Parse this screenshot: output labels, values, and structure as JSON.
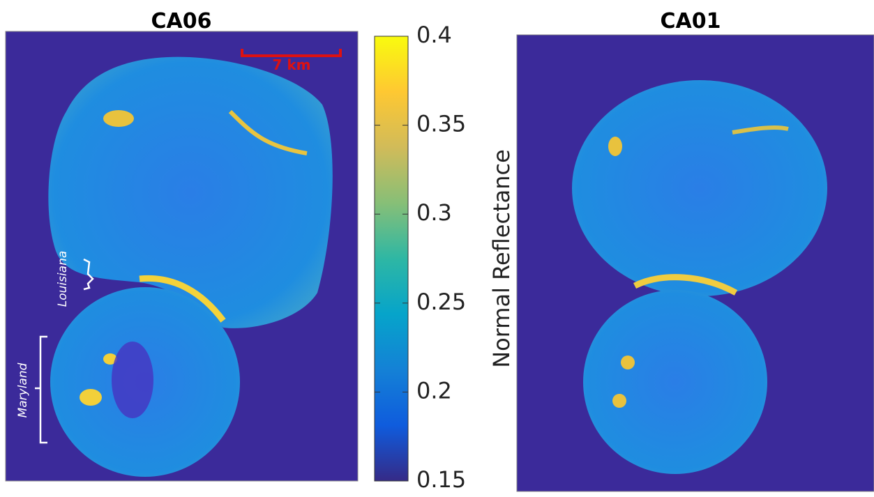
{
  "chart_data": {
    "type": "image",
    "panels": [
      {
        "title": "CA06"
      },
      {
        "title": "CA01"
      }
    ],
    "colorbar": {
      "label": "Normal Reflectance",
      "lim": [
        0.15,
        0.4
      ],
      "ticks": [
        0.15,
        0.2,
        0.25,
        0.3,
        0.35,
        0.4
      ],
      "colormap": [
        "#352a87",
        "#0f5cdd",
        "#1481d6",
        "#06a4ca",
        "#2eb7a4",
        "#87bf77",
        "#d1bb59",
        "#fec832",
        "#f9fb0e"
      ]
    },
    "annotations": {
      "scale": "7 km",
      "region1": "Louisiana",
      "region2": "Maryland"
    }
  }
}
